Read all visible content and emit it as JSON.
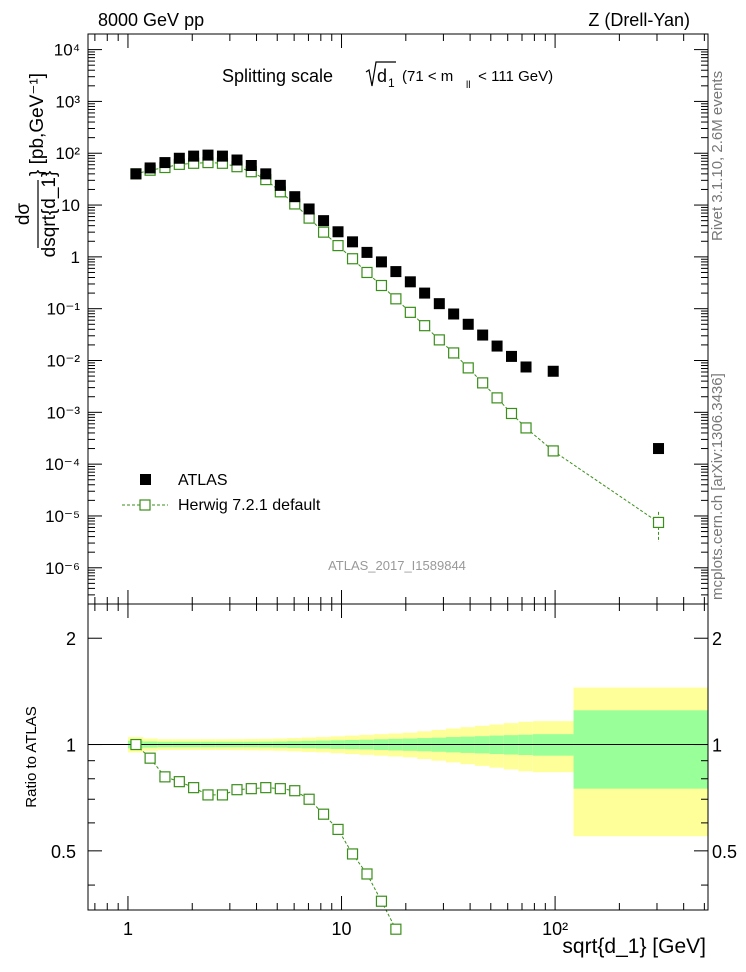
{
  "header": {
    "left": "8000 GeV pp",
    "right": "Z (Drell-Yan)"
  },
  "side_text": {
    "rivet": "Rivet 3.1.10, 2.6M events",
    "mcplots": "mcplots.cern.ch [arXiv:1306.3436]"
  },
  "chart_data": [
    {
      "type": "scatter",
      "panel": "main",
      "title_main": "Splitting scale",
      "title_sqrt_symbol": "d",
      "title_sqrt_sub": "1",
      "title_cut_pre": "(71 < m",
      "title_cut_sub": "ll",
      "title_cut_post": " < 111 GeV)",
      "ylabel_numerator": "dσ",
      "ylabel_denominator": "dsqrt{d_1}",
      "ylabel_unit": "} [pb,GeV⁻¹]",
      "xlabel": "sqrt{d_1} [GeV]",
      "analysis_tag": "ATLAS_2017_I1589844",
      "x_scale": "log",
      "y_scale": "log",
      "xlim": [
        0.65,
        520
      ],
      "ylim": [
        2e-07,
        20000.0
      ],
      "x_tick_labels": [
        "1",
        "10",
        "10²"
      ],
      "y_tick_labels": [
        "10⁻⁶",
        "10⁻⁵",
        "10⁻⁴",
        "10⁻³",
        "10⁻²",
        "10⁻¹",
        "1",
        "10",
        "10²",
        "10³",
        "10⁴"
      ],
      "legend_position": "bottom-left",
      "series": [
        {
          "name": "ATLAS",
          "marker": "filled-square",
          "color": "#000000",
          "x": [
            1.09,
            1.27,
            1.49,
            1.74,
            2.03,
            2.37,
            2.77,
            3.24,
            3.78,
            4.42,
            5.17,
            6.04,
            7.05,
            8.24,
            9.63,
            11.26,
            13.16,
            15.38,
            17.97,
            21.0,
            24.5,
            28.7,
            33.5,
            39.2,
            45.8,
            53.5,
            62.5,
            73.1,
            98.0,
            305.0
          ],
          "y": [
            40,
            52,
            66,
            80,
            88,
            92,
            88,
            74,
            58,
            40,
            24,
            14.5,
            8.4,
            5.0,
            3.05,
            1.95,
            1.22,
            0.8,
            0.52,
            0.33,
            0.2,
            0.125,
            0.079,
            0.05,
            0.031,
            0.019,
            0.012,
            0.0075,
            0.0062,
            0.0002
          ]
        },
        {
          "name": "Herwig 7.2.1 default",
          "marker": "open-square",
          "color": "#3a8f1a",
          "x": [
            1.09,
            1.27,
            1.49,
            1.74,
            2.03,
            2.37,
            2.77,
            3.24,
            3.78,
            4.42,
            5.17,
            6.04,
            7.05,
            8.24,
            9.63,
            11.26,
            13.16,
            15.38,
            17.97,
            21.0,
            24.5,
            28.7,
            33.5,
            39.2,
            45.8,
            53.5,
            62.5,
            73.1,
            98.0,
            305.0
          ],
          "y": [
            40,
            47,
            53,
            61,
            64,
            66,
            64,
            55,
            44,
            31,
            18,
            10.5,
            5.6,
            3.0,
            1.65,
            0.92,
            0.5,
            0.28,
            0.155,
            0.085,
            0.047,
            0.025,
            0.014,
            0.0072,
            0.0037,
            0.0019,
            0.00095,
            0.0005,
            0.00018,
            7.5e-06
          ]
        }
      ]
    },
    {
      "type": "line",
      "panel": "ratio",
      "ylabel": "Ratio to ATLAS",
      "x_scale": "log",
      "xlim": [
        0.65,
        520
      ],
      "ylim": [
        0.34,
        2.5
      ],
      "y_tick_labels": [
        "0.5",
        "1",
        "2"
      ],
      "x_tick_labels": [
        "1",
        "10",
        "10²"
      ],
      "band_colors": {
        "inner": "#99ff99",
        "outer": "#ffff99"
      },
      "uncertainty_bins": [
        {
          "x_low": 1.0,
          "x_high": 1.18,
          "inner": 0.025,
          "outer": 0.05
        },
        {
          "x_low": 1.18,
          "x_high": 1.38,
          "inner": 0.02,
          "outer": 0.04
        },
        {
          "x_low": 1.38,
          "x_high": 1.61,
          "inner": 0.018,
          "outer": 0.035
        },
        {
          "x_low": 1.61,
          "x_high": 1.88,
          "inner": 0.018,
          "outer": 0.035
        },
        {
          "x_low": 1.88,
          "x_high": 2.19,
          "inner": 0.018,
          "outer": 0.035
        },
        {
          "x_low": 2.19,
          "x_high": 2.56,
          "inner": 0.018,
          "outer": 0.035
        },
        {
          "x_low": 2.56,
          "x_high": 2.99,
          "inner": 0.018,
          "outer": 0.035
        },
        {
          "x_low": 2.99,
          "x_high": 3.49,
          "inner": 0.018,
          "outer": 0.036
        },
        {
          "x_low": 3.49,
          "x_high": 4.08,
          "inner": 0.018,
          "outer": 0.037
        },
        {
          "x_low": 4.08,
          "x_high": 4.76,
          "inner": 0.019,
          "outer": 0.038
        },
        {
          "x_low": 4.76,
          "x_high": 5.56,
          "inner": 0.02,
          "outer": 0.04
        },
        {
          "x_low": 5.56,
          "x_high": 6.5,
          "inner": 0.022,
          "outer": 0.043
        },
        {
          "x_low": 6.5,
          "x_high": 7.59,
          "inner": 0.024,
          "outer": 0.047
        },
        {
          "x_low": 7.59,
          "x_high": 8.87,
          "inner": 0.026,
          "outer": 0.05
        },
        {
          "x_low": 8.87,
          "x_high": 10.37,
          "inner": 0.028,
          "outer": 0.055
        },
        {
          "x_low": 10.37,
          "x_high": 12.11,
          "inner": 0.03,
          "outer": 0.06
        },
        {
          "x_low": 12.11,
          "x_high": 14.15,
          "inner": 0.032,
          "outer": 0.065
        },
        {
          "x_low": 14.15,
          "x_high": 16.54,
          "inner": 0.035,
          "outer": 0.07
        },
        {
          "x_low": 16.54,
          "x_high": 19.33,
          "inner": 0.038,
          "outer": 0.075
        },
        {
          "x_low": 19.33,
          "x_high": 22.59,
          "inner": 0.04,
          "outer": 0.08
        },
        {
          "x_low": 22.59,
          "x_high": 26.4,
          "inner": 0.043,
          "outer": 0.09
        },
        {
          "x_low": 26.4,
          "x_high": 30.85,
          "inner": 0.046,
          "outer": 0.1
        },
        {
          "x_low": 30.85,
          "x_high": 36.06,
          "inner": 0.05,
          "outer": 0.11
        },
        {
          "x_low": 36.06,
          "x_high": 42.14,
          "inner": 0.053,
          "outer": 0.12
        },
        {
          "x_low": 42.14,
          "x_high": 49.25,
          "inner": 0.056,
          "outer": 0.13
        },
        {
          "x_low": 49.25,
          "x_high": 57.55,
          "inner": 0.06,
          "outer": 0.14
        },
        {
          "x_low": 57.55,
          "x_high": 67.26,
          "inner": 0.063,
          "outer": 0.15
        },
        {
          "x_low": 67.26,
          "x_high": 78.6,
          "inner": 0.066,
          "outer": 0.16
        },
        {
          "x_low": 78.6,
          "x_high": 122.0,
          "inner": 0.07,
          "outer": 0.165
        },
        {
          "x_low": 122.0,
          "x_high": 520.0,
          "inner": 0.25,
          "outer": 0.45
        }
      ],
      "series": [
        {
          "name": "Herwig 7.2.1 default",
          "marker": "open-square",
          "color": "#3a8f1a",
          "x": [
            1.09,
            1.27,
            1.49,
            1.74,
            2.03,
            2.37,
            2.77,
            3.24,
            3.78,
            4.42,
            5.17,
            6.04,
            7.05,
            8.24,
            9.63,
            11.26,
            13.16,
            15.38,
            17.97
          ],
          "y": [
            1.0,
            0.915,
            0.81,
            0.785,
            0.755,
            0.72,
            0.72,
            0.745,
            0.75,
            0.755,
            0.75,
            0.74,
            0.7,
            0.635,
            0.575,
            0.49,
            0.43,
            0.36,
            0.3
          ]
        }
      ]
    }
  ]
}
